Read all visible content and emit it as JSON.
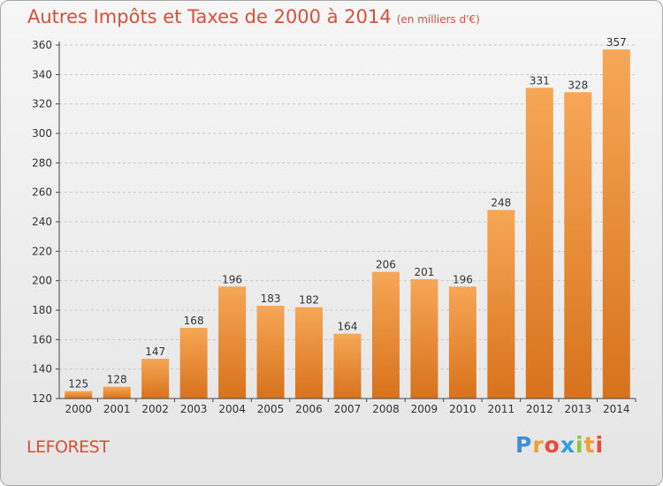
{
  "chart_data": {
    "type": "bar",
    "title": "Autres Impôts et Taxes de 2000 à 2014",
    "unit_label": "(en milliers d'€)",
    "categories": [
      "2000",
      "2001",
      "2002",
      "2003",
      "2004",
      "2005",
      "2006",
      "2007",
      "2008",
      "2009",
      "2010",
      "2011",
      "2012",
      "2013",
      "2014"
    ],
    "values": [
      125,
      128,
      147,
      168,
      196,
      183,
      182,
      164,
      206,
      201,
      196,
      248,
      331,
      328,
      357
    ],
    "ylim": [
      120,
      360
    ],
    "yticks": [
      120,
      140,
      160,
      180,
      200,
      220,
      240,
      260,
      280,
      300,
      320,
      340,
      360
    ],
    "grid": true,
    "xlabel": "",
    "ylabel": ""
  },
  "commune": "LEFOREST",
  "logo": {
    "letters": [
      "P",
      "r",
      "o",
      "x",
      "i",
      "t",
      "i"
    ],
    "colors": [
      "#3e8fd6",
      "#f0a030",
      "#e84c3d",
      "#2e9fe0",
      "#8cc63f",
      "#f0a030",
      "#e84c3d"
    ]
  },
  "colors": {
    "title": "#d9503a",
    "bar_light": "#f6a756",
    "bar_dark": "#d8721c",
    "grid": "#c8c8c8",
    "axis": "#444444"
  }
}
